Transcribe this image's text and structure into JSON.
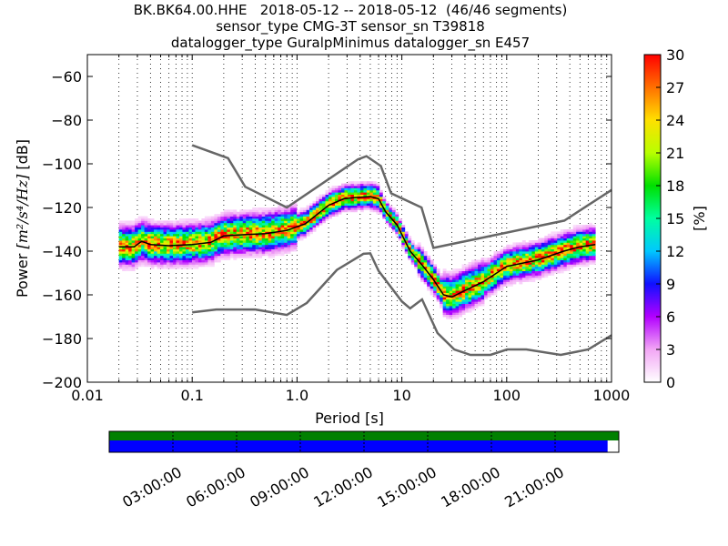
{
  "chart_data": [
    {
      "type": "heatmap",
      "title_lines": [
        "BK.BK64.00.HHE   2018-05-12 -- 2018-05-12  (46/46 segments)",
        "sensor_type CMG-3T sensor_sn T39818",
        "datalogger_type GuralpMinimus datalogger_sn E457"
      ],
      "xlabel": "Period [s]",
      "ylabel_prefix": "Power ",
      "ylabel_math": "[m²/s⁴/Hz]",
      "ylabel_suffix": " [dB]",
      "xscale": "log",
      "xlim": [
        0.01,
        1000
      ],
      "ylim": [
        -200,
        -50
      ],
      "xticks": [
        {
          "value": 0.01,
          "label": "0.01"
        },
        {
          "value": 0.1,
          "label": "0.1"
        },
        {
          "value": 1,
          "label": "1.0"
        },
        {
          "value": 10,
          "label": "10"
        },
        {
          "value": 100,
          "label": "100"
        },
        {
          "value": 1000,
          "label": "1000"
        }
      ],
      "yticks": [
        {
          "value": -60,
          "label": "−60"
        },
        {
          "value": -80,
          "label": "−80"
        },
        {
          "value": -100,
          "label": "−100"
        },
        {
          "value": -120,
          "label": "−120"
        },
        {
          "value": -140,
          "label": "−140"
        },
        {
          "value": -160,
          "label": "−160"
        },
        {
          "value": -180,
          "label": "−180"
        },
        {
          "value": -200,
          "label": "−200"
        }
      ],
      "grid": "dotted vertical at each log decade subdivision",
      "noise_model_high": {
        "name": "",
        "points": [
          [
            0.1,
            -91.5
          ],
          [
            0.22,
            -97.4
          ],
          [
            0.32,
            -110.5
          ],
          [
            0.8,
            -120
          ],
          [
            3.8,
            -98
          ],
          [
            4.6,
            -96.5
          ],
          [
            6.3,
            -101
          ],
          [
            7.9,
            -113.5
          ],
          [
            15.4,
            -120
          ],
          [
            20,
            -138.5
          ],
          [
            354.8,
            -126
          ],
          [
            1000,
            -112
          ]
        ]
      },
      "noise_model_low": {
        "name": "",
        "points": [
          [
            0.1,
            -168
          ],
          [
            0.17,
            -166.7
          ],
          [
            0.4,
            -166.7
          ],
          [
            0.8,
            -169.2
          ],
          [
            1.24,
            -163.7
          ],
          [
            2.4,
            -148.6
          ],
          [
            4.3,
            -141.2
          ],
          [
            5,
            -141
          ],
          [
            6,
            -149
          ],
          [
            10,
            -163
          ],
          [
            12,
            -166.2
          ],
          [
            15.6,
            -162.1
          ],
          [
            21.9,
            -177.5
          ],
          [
            31.6,
            -185
          ],
          [
            45,
            -187.5
          ],
          [
            70,
            -187.5
          ],
          [
            101,
            -185
          ],
          [
            154,
            -185
          ],
          [
            328,
            -187.5
          ],
          [
            600,
            -185
          ],
          [
            1000,
            -178.5
          ]
        ]
      },
      "mode_curve": {
        "name": "",
        "points": [
          [
            0.02,
            -138
          ],
          [
            0.028,
            -138
          ],
          [
            0.033,
            -135.5
          ],
          [
            0.04,
            -137
          ],
          [
            0.06,
            -137.5
          ],
          [
            0.1,
            -137
          ],
          [
            0.15,
            -136
          ],
          [
            0.2,
            -133
          ],
          [
            0.3,
            -132.5
          ],
          [
            0.5,
            -132
          ],
          [
            0.8,
            -130.5
          ],
          [
            1.2,
            -127.5
          ],
          [
            2,
            -119
          ],
          [
            2.8,
            -116
          ],
          [
            3.5,
            -115.5
          ],
          [
            5,
            -115
          ],
          [
            6,
            -116
          ],
          [
            7,
            -122
          ],
          [
            9,
            -128
          ],
          [
            12,
            -140
          ],
          [
            16,
            -147
          ],
          [
            20,
            -153
          ],
          [
            25,
            -160
          ],
          [
            30,
            -161
          ],
          [
            40,
            -158
          ],
          [
            60,
            -154
          ],
          [
            100,
            -147
          ],
          [
            200,
            -144
          ],
          [
            350,
            -140
          ],
          [
            500,
            -138
          ],
          [
            700,
            -137
          ]
        ]
      },
      "density_percent_examples": "spread of colored cells around the mode curve, highest (~30%) on the curve",
      "colorbar": {
        "label": "[%]",
        "min": 0,
        "max": 30,
        "ticks": [
          {
            "value": 0,
            "label": "0"
          },
          {
            "value": 3,
            "label": "3"
          },
          {
            "value": 6,
            "label": "6"
          },
          {
            "value": 9,
            "label": "9"
          },
          {
            "value": 12,
            "label": "12"
          },
          {
            "value": 15,
            "label": "15"
          },
          {
            "value": 18,
            "label": "18"
          },
          {
            "value": 21,
            "label": "21"
          },
          {
            "value": 24,
            "label": "24"
          },
          {
            "value": 27,
            "label": "27"
          },
          {
            "value": 30,
            "label": "30"
          }
        ],
        "colors": [
          "#ffffff",
          "#f2a6f5",
          "#b200ff",
          "#1010ff",
          "#00c8ff",
          "#00ffa0",
          "#00e000",
          "#b8ff00",
          "#ffe000",
          "#ff7000",
          "#ff0000"
        ]
      }
    },
    {
      "type": "table",
      "description_of_mark": "data coverage timeline",
      "time_ticks": [
        "03:00:00",
        "06:00:00",
        "09:00:00",
        "12:00:00",
        "15:00:00",
        "18:00:00",
        "21:00:00"
      ],
      "coverage_fraction": 0.978,
      "colors": {
        "top_bar": "#008000",
        "data_bar": "#0000ff"
      }
    }
  ]
}
